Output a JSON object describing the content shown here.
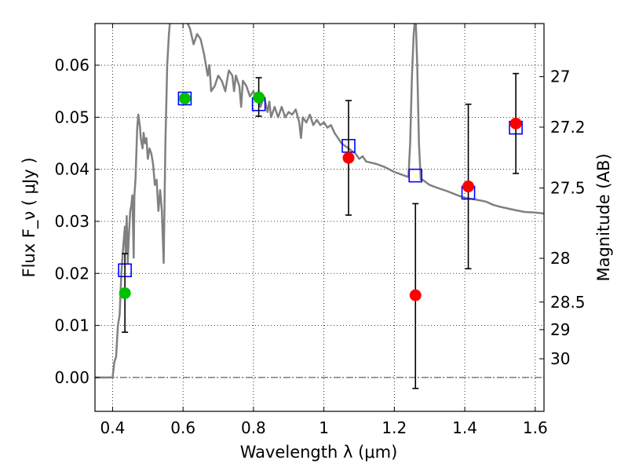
{
  "chart_data": {
    "type": "scatter",
    "xlabel": "Wavelength  λ (μm)",
    "ylabel": "Flux  F_ν  ( μJy )",
    "y2label": "Magnitude (AB)",
    "xlim": [
      0.35,
      1.625
    ],
    "ylim": [
      -0.0065,
      0.068
    ],
    "x_ticks": [
      0.4,
      0.6,
      0.8,
      1.0,
      1.2,
      1.4,
      1.6
    ],
    "x_tick_labels": [
      "0.4",
      "0.6",
      "0.8",
      "1",
      "1.2",
      "1.4",
      "1.6"
    ],
    "y_ticks": [
      0.0,
      0.01,
      0.02,
      0.03,
      0.04,
      0.05,
      0.06
    ],
    "y_tick_labels": [
      "0.00",
      "0.01",
      "0.02",
      "0.03",
      "0.04",
      "0.05",
      "0.06"
    ],
    "magnitude_ticks": [
      {
        "label": "27",
        "flux": 0.0578
      },
      {
        "label": "27.2",
        "flux": 0.0481
      },
      {
        "label": "27.5",
        "flux": 0.0364
      },
      {
        "label": "28",
        "flux": 0.0229
      },
      {
        "label": "28.5",
        "flux": 0.0145
      },
      {
        "label": "29",
        "flux": 0.0092
      },
      {
        "label": "30",
        "flux": 0.0036
      }
    ],
    "grid": true,
    "zero_line": true,
    "series": [
      {
        "kind": "line",
        "color": "#808080",
        "points": [
          [
            0.35,
            0.0
          ],
          [
            0.4,
            0.0
          ],
          [
            0.405,
            0.003
          ],
          [
            0.41,
            0.004
          ],
          [
            0.415,
            0.01
          ],
          [
            0.42,
            0.012
          ],
          [
            0.425,
            0.02
          ],
          [
            0.43,
            0.025
          ],
          [
            0.435,
            0.029
          ],
          [
            0.437,
            0.024
          ],
          [
            0.44,
            0.031
          ],
          [
            0.443,
            0.022
          ],
          [
            0.446,
            0.027
          ],
          [
            0.45,
            0.032
          ],
          [
            0.453,
            0.033
          ],
          [
            0.456,
            0.035
          ],
          [
            0.46,
            0.023
          ],
          [
            0.462,
            0.035
          ],
          [
            0.465,
            0.038
          ],
          [
            0.47,
            0.048
          ],
          [
            0.473,
            0.0505
          ],
          [
            0.478,
            0.048
          ],
          [
            0.48,
            0.046
          ],
          [
            0.485,
            0.044
          ],
          [
            0.488,
            0.047
          ],
          [
            0.492,
            0.045
          ],
          [
            0.496,
            0.046
          ],
          [
            0.5,
            0.042
          ],
          [
            0.505,
            0.044
          ],
          [
            0.51,
            0.043
          ],
          [
            0.515,
            0.041
          ],
          [
            0.52,
            0.037
          ],
          [
            0.525,
            0.038
          ],
          [
            0.53,
            0.032
          ],
          [
            0.535,
            0.036
          ],
          [
            0.54,
            0.032
          ],
          [
            0.545,
            0.022
          ],
          [
            0.55,
            0.045
          ],
          [
            0.555,
            0.06
          ],
          [
            0.56,
            0.066
          ],
          [
            0.565,
            0.07
          ],
          [
            0.58,
            0.075
          ],
          [
            0.6,
            0.07
          ],
          [
            0.62,
            0.067
          ],
          [
            0.63,
            0.064
          ],
          [
            0.64,
            0.066
          ],
          [
            0.65,
            0.065
          ],
          [
            0.66,
            0.062
          ],
          [
            0.67,
            0.058
          ],
          [
            0.675,
            0.06
          ],
          [
            0.68,
            0.055
          ],
          [
            0.69,
            0.056
          ],
          [
            0.7,
            0.058
          ],
          [
            0.71,
            0.057
          ],
          [
            0.72,
            0.055
          ],
          [
            0.725,
            0.057
          ],
          [
            0.73,
            0.059
          ],
          [
            0.74,
            0.058
          ],
          [
            0.745,
            0.055
          ],
          [
            0.75,
            0.058
          ],
          [
            0.76,
            0.056
          ],
          [
            0.765,
            0.052
          ],
          [
            0.77,
            0.057
          ],
          [
            0.78,
            0.056
          ],
          [
            0.79,
            0.054
          ],
          [
            0.8,
            0.055
          ],
          [
            0.81,
            0.053
          ],
          [
            0.815,
            0.055
          ],
          [
            0.82,
            0.052
          ],
          [
            0.83,
            0.054
          ],
          [
            0.84,
            0.051
          ],
          [
            0.845,
            0.053
          ],
          [
            0.85,
            0.05
          ],
          [
            0.86,
            0.052
          ],
          [
            0.87,
            0.05
          ],
          [
            0.88,
            0.052
          ],
          [
            0.89,
            0.05
          ],
          [
            0.9,
            0.051
          ],
          [
            0.91,
            0.0505
          ],
          [
            0.92,
            0.0515
          ],
          [
            0.93,
            0.049
          ],
          [
            0.935,
            0.046
          ],
          [
            0.94,
            0.05
          ],
          [
            0.95,
            0.049
          ],
          [
            0.96,
            0.0505
          ],
          [
            0.97,
            0.0485
          ],
          [
            0.98,
            0.0495
          ],
          [
            0.99,
            0.0485
          ],
          [
            1.0,
            0.049
          ],
          [
            1.01,
            0.048
          ],
          [
            1.02,
            0.0485
          ],
          [
            1.03,
            0.047
          ],
          [
            1.04,
            0.046
          ],
          [
            1.05,
            0.045
          ],
          [
            1.07,
            0.044
          ],
          [
            1.09,
            0.043
          ],
          [
            1.1,
            0.042
          ],
          [
            1.11,
            0.0425
          ],
          [
            1.12,
            0.0415
          ],
          [
            1.15,
            0.041
          ],
          [
            1.17,
            0.0405
          ],
          [
            1.2,
            0.0395
          ],
          [
            1.22,
            0.039
          ],
          [
            1.24,
            0.0385
          ],
          [
            1.245,
            0.045
          ],
          [
            1.25,
            0.058
          ],
          [
            1.255,
            0.066
          ],
          [
            1.26,
            0.07
          ],
          [
            1.265,
            0.06
          ],
          [
            1.27,
            0.045
          ],
          [
            1.275,
            0.038
          ],
          [
            1.28,
            0.038
          ],
          [
            1.3,
            0.037
          ],
          [
            1.32,
            0.0365
          ],
          [
            1.35,
            0.0358
          ],
          [
            1.38,
            0.035
          ],
          [
            1.4,
            0.0345
          ],
          [
            1.43,
            0.0342
          ],
          [
            1.46,
            0.0338
          ],
          [
            1.48,
            0.0332
          ],
          [
            1.5,
            0.0328
          ],
          [
            1.52,
            0.0325
          ],
          [
            1.54,
            0.0322
          ],
          [
            1.57,
            0.0318
          ],
          [
            1.6,
            0.0317
          ],
          [
            1.625,
            0.0315
          ]
        ]
      },
      {
        "kind": "markers",
        "marker": "open-square",
        "color": "#0000ff",
        "points": [
          [
            0.435,
            0.0206
          ],
          [
            0.605,
            0.0536
          ],
          [
            0.815,
            0.0525
          ],
          [
            1.07,
            0.0445
          ],
          [
            1.26,
            0.0388
          ],
          [
            1.41,
            0.0355
          ],
          [
            1.545,
            0.048
          ]
        ]
      },
      {
        "kind": "markers",
        "marker": "filled-circle",
        "color": "#00c000",
        "points": [
          {
            "x": 0.435,
            "y": 0.0162,
            "yerr_low": 0.0087,
            "yerr_high": 0.0238
          },
          {
            "x": 0.605,
            "y": 0.0536
          },
          {
            "x": 0.815,
            "y": 0.0538,
            "yerr_low": 0.0502,
            "yerr_high": 0.0576
          }
        ]
      },
      {
        "kind": "markers",
        "marker": "filled-circle",
        "color": "#ff0000",
        "points": [
          {
            "x": 1.07,
            "y": 0.0422,
            "yerr_low": 0.0312,
            "yerr_high": 0.0532
          },
          {
            "x": 1.26,
            "y": 0.0158,
            "yerr_low": -0.0021,
            "yerr_high": 0.0334
          },
          {
            "x": 1.41,
            "y": 0.0367,
            "yerr_low": 0.0209,
            "yerr_high": 0.0525
          },
          {
            "x": 1.545,
            "y": 0.0488,
            "yerr_low": 0.0392,
            "yerr_high": 0.0584
          }
        ]
      }
    ]
  }
}
